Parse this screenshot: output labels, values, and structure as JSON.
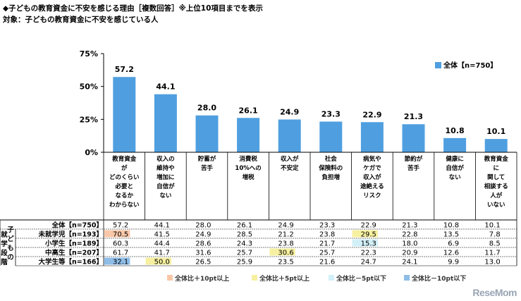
{
  "header": {
    "title": "◆子どもの教育資金に不安を感じる理由［複数回答］※上位10項目までを表示",
    "subtitle": "対象：子どもの教育資金に不安を感じている人"
  },
  "chart_data": {
    "type": "bar",
    "categories": [
      "教育資金がどのくらい必要となるかわからない",
      "収入の維持や増加に自信がない",
      "貯蓄が苦手",
      "消費税10%への増税",
      "収入が不安定",
      "社会保険料の負担増",
      "病気やケガで収入が途絶えるリスク",
      "節約が苦手",
      "健康に自信がない",
      "教育資金に関して相談する人がいない"
    ],
    "category_lines": [
      [
        "教育資金",
        "が",
        "どのくらい",
        "必要と",
        "なるか",
        "わからない"
      ],
      [
        "収入の",
        "維持や",
        "増加に",
        "自信が",
        "ない"
      ],
      [
        "貯蓄が",
        "苦手"
      ],
      [
        "消費税",
        "10%への",
        "増税"
      ],
      [
        "収入が",
        "不安定"
      ],
      [
        "社会",
        "保険料の",
        "負担増"
      ],
      [
        "病気や",
        "ケガで",
        "収入が",
        "途絶える",
        "リスク"
      ],
      [
        "節約が",
        "苦手"
      ],
      [
        "健康に",
        "自信が",
        "ない"
      ],
      [
        "教育資金",
        "に",
        "関して",
        "相談する",
        "人が",
        "いない"
      ]
    ],
    "series": [
      {
        "name": "全体【n=750】",
        "values": [
          57.2,
          44.1,
          28.0,
          26.1,
          24.9,
          23.3,
          22.9,
          21.3,
          10.8,
          10.1
        ]
      }
    ],
    "value_labels": [
      "57.2",
      "44.1",
      "28.0",
      "26.1",
      "24.9",
      "23.3",
      "22.9",
      "21.3",
      "10.8",
      "10.1"
    ],
    "yticks": [
      "0%",
      "25%",
      "50%",
      "75%"
    ],
    "ylim": [
      0,
      75
    ],
    "legend_label": "全体【n=750】",
    "legend_position": "top-right",
    "colors": {
      "bar": "#4f9fe0",
      "plus10": "#f9c7a8",
      "plus5": "#f6f0a0",
      "minus5": "#d2f0f7",
      "minus10": "#8ebde8"
    }
  },
  "table": {
    "group_label": [
      "就",
      "学",
      "段",
      "階",
      "子",
      "ど",
      "も",
      "の"
    ],
    "rows": [
      {
        "label": "全体【n=750】",
        "values": [
          "57.2",
          "44.1",
          "28.0",
          "26.1",
          "24.9",
          "23.3",
          "22.9",
          "21.3",
          "10.8",
          "10.1"
        ],
        "highlights": [
          "",
          "",
          "",
          "",
          "",
          "",
          "",
          "",
          "",
          ""
        ]
      },
      {
        "label": "未就学児【n=193】",
        "values": [
          "70.5",
          "41.5",
          "24.9",
          "28.5",
          "21.2",
          "23.8",
          "29.5",
          "22.8",
          "13.5",
          "7.8"
        ],
        "highlights": [
          "plus10",
          "",
          "",
          "",
          "",
          "",
          "plus5",
          "",
          "",
          ""
        ]
      },
      {
        "label": "小学生【n=189】",
        "values": [
          "60.3",
          "44.4",
          "28.6",
          "24.3",
          "23.8",
          "21.7",
          "15.3",
          "18.0",
          "6.9",
          "8.5"
        ],
        "highlights": [
          "",
          "",
          "",
          "",
          "",
          "",
          "minus5",
          "",
          "",
          ""
        ]
      },
      {
        "label": "中高生【n=207】",
        "values": [
          "61.7",
          "41.7",
          "31.6",
          "25.7",
          "30.6",
          "25.7",
          "22.3",
          "20.9",
          "12.6",
          "11.7"
        ],
        "highlights": [
          "",
          "",
          "",
          "",
          "plus5",
          "",
          "",
          "",
          "",
          ""
        ]
      },
      {
        "label": "大学生等【n=166】",
        "values": [
          "32.1",
          "50.0",
          "26.5",
          "25.9",
          "23.5",
          "21.6",
          "24.7",
          "24.1",
          "9.9",
          "13.0"
        ],
        "highlights": [
          "minus10",
          "plus5",
          "",
          "",
          "",
          "",
          "",
          "",
          "",
          ""
        ]
      }
    ]
  },
  "legend_boxes": [
    {
      "key": "plus10",
      "label": "全体比＋10pt以上"
    },
    {
      "key": "plus5",
      "label": "全体比＋5pt以上"
    },
    {
      "key": "minus5",
      "label": "全体比－5pt以下"
    },
    {
      "key": "minus10",
      "label": "全体比－10pt以下"
    }
  ],
  "watermark": "ReseMom"
}
